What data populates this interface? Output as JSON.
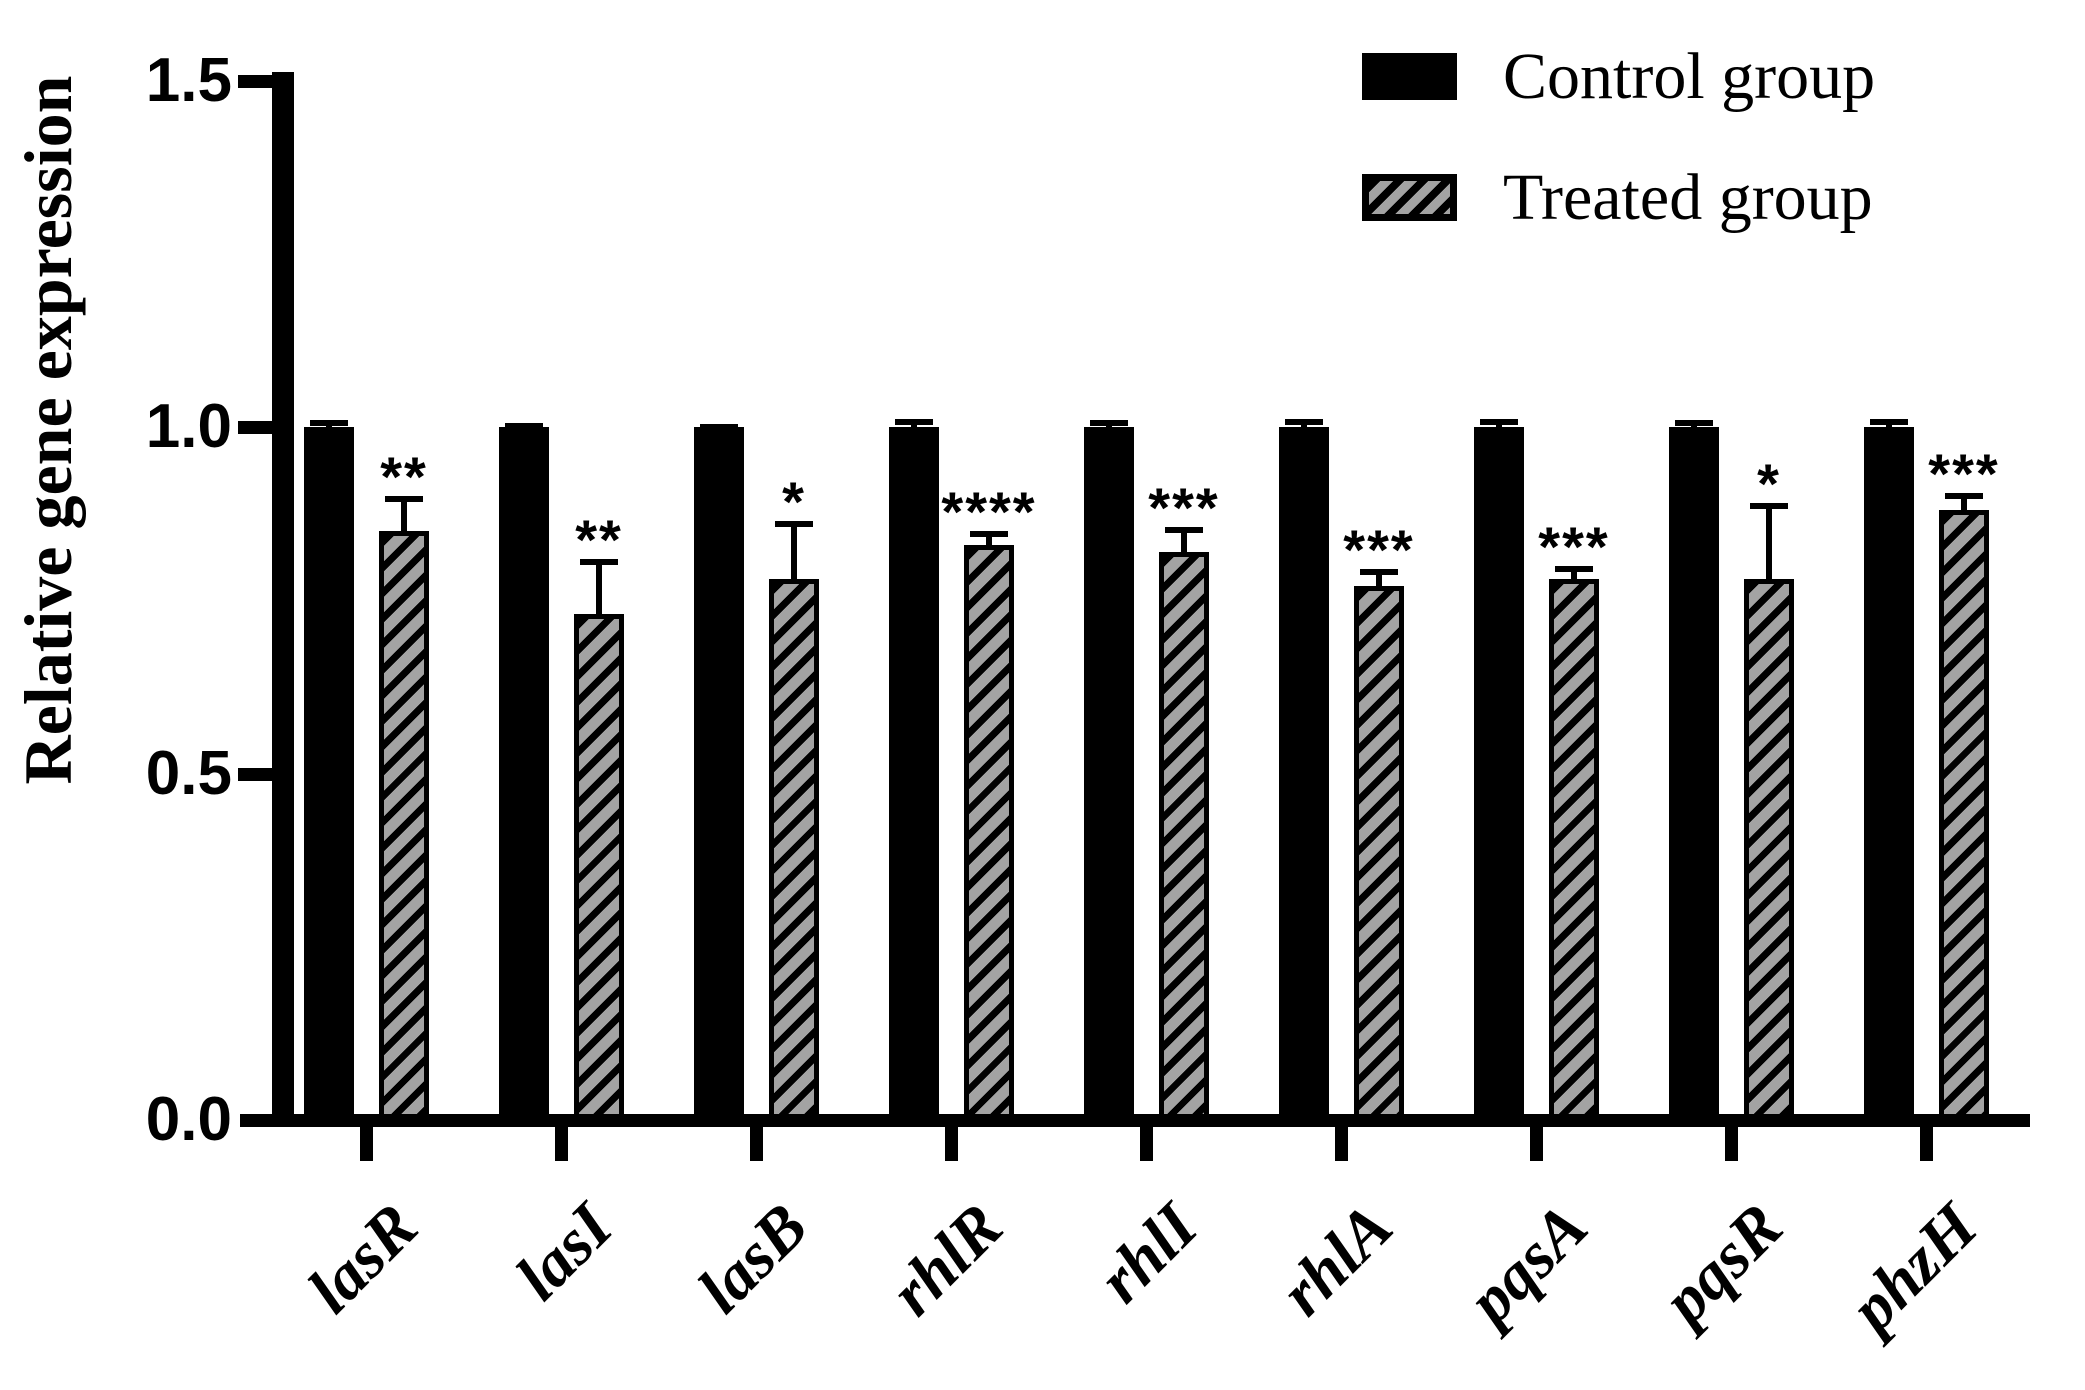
{
  "figure": {
    "ylabel": "Relative gene expression",
    "legend": [
      {
        "label": "Control group",
        "swatch": "solid-black"
      },
      {
        "label": "Treated group",
        "swatch": "hatched-gray"
      }
    ],
    "colors": {
      "bar": "#000000",
      "hatch_gray": "#a3a3a3",
      "background": "#ffffff"
    }
  },
  "chart_data": {
    "type": "bar",
    "title": "",
    "xlabel": "",
    "ylabel": "Relative gene expression",
    "categories": [
      "lasR",
      "lasI",
      "lasB",
      "rhlR",
      "rhlI",
      "rhlA",
      "pqsA",
      "pqsR",
      "phzH"
    ],
    "series": [
      {
        "name": "Control group",
        "style": "solid-black",
        "values": [
          1.0,
          1.0,
          1.0,
          1.0,
          1.0,
          1.0,
          1.0,
          1.0,
          1.0
        ],
        "errors": [
          0.01,
          0.006,
          0.005,
          0.012,
          0.01,
          0.012,
          0.012,
          0.01,
          0.012
        ]
      },
      {
        "name": "Treated group",
        "style": "hatched-gray",
        "values": [
          0.85,
          0.73,
          0.78,
          0.83,
          0.82,
          0.77,
          0.78,
          0.78,
          0.88
        ],
        "errors": [
          0.05,
          0.08,
          0.085,
          0.02,
          0.035,
          0.025,
          0.02,
          0.11,
          0.025
        ]
      }
    ],
    "significance_by_category": [
      "**",
      "**",
      "*",
      "****",
      "***",
      "***",
      "***",
      "*",
      "***"
    ],
    "ylim": [
      0,
      1.5
    ],
    "ytick_values": [
      0,
      0.5,
      1.0,
      1.5
    ],
    "ytick_labels": [
      "0.0",
      "0.5",
      "1.0",
      "1.5"
    ],
    "grid": false,
    "legend_position": "top-right",
    "error_bars": "upper-only"
  }
}
